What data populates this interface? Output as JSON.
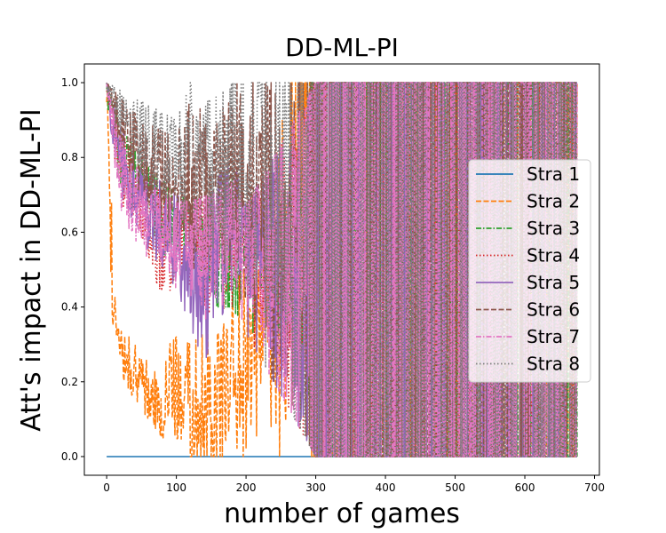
{
  "chart_data": {
    "type": "line",
    "title": "DD-ML-PI",
    "xlabel": "number of games",
    "ylabel": "Att's impact in DD-ML-PI",
    "xlim": [
      -32,
      707
    ],
    "ylim": [
      -0.05,
      1.05
    ],
    "xticks": [
      0,
      100,
      200,
      300,
      400,
      500,
      600,
      700
    ],
    "yticks": [
      0.0,
      0.2,
      0.4,
      0.6,
      0.8,
      1.0
    ],
    "xtick_labels": [
      "0",
      "100",
      "200",
      "300",
      "400",
      "500",
      "600",
      "700"
    ],
    "ytick_labels": [
      "0.0",
      "0.2",
      "0.4",
      "0.6",
      "0.8",
      "1.0"
    ],
    "grid": false,
    "legend_position": "center-right",
    "x_range": [
      0,
      675
    ],
    "series": [
      {
        "name": "Stra 1",
        "color": "#1f77b4",
        "dash": "solid",
        "x": [
          0,
          675
        ],
        "values": [
          0.0,
          0.0
        ]
      },
      {
        "name": "Stra 2",
        "color": "#ff7f0e",
        "dash": "dashed",
        "x": [
          0,
          5,
          10,
          20,
          40,
          60,
          80,
          100,
          120,
          140,
          160,
          175,
          190,
          220,
          260,
          290,
          300,
          400,
          500,
          600,
          675
        ],
        "values": [
          0.97,
          0.7,
          0.38,
          0.28,
          0.22,
          0.16,
          0.14,
          0.18,
          0.12,
          0.1,
          0.14,
          0.2,
          0.25,
          0.3,
          0.5,
          1.0,
          0.5,
          0.5,
          0.5,
          0.5,
          0.5
        ],
        "upper": [
          1.0,
          0.9,
          0.5,
          0.35,
          0.3,
          0.25,
          0.28,
          0.32,
          0.3,
          0.33,
          0.33,
          0.4,
          0.5,
          0.5,
          1.0,
          1.0,
          1.0,
          1.0,
          1.0,
          1.0,
          1.0
        ],
        "lower": [
          0.9,
          0.5,
          0.3,
          0.22,
          0.15,
          0.1,
          0.05,
          0.05,
          0.0,
          0.0,
          0.0,
          0.0,
          0.0,
          0.0,
          0.0,
          0.0,
          0.0,
          0.0,
          0.0,
          0.0,
          0.0
        ]
      },
      {
        "name": "Stra 3",
        "color": "#2ca02c",
        "dash": "dashdot",
        "x": [
          0,
          20,
          50,
          100,
          150,
          180,
          200,
          250,
          280,
          300,
          400,
          500,
          600,
          675
        ],
        "values": [
          1.0,
          0.8,
          0.72,
          0.6,
          0.55,
          0.5,
          0.6,
          0.5,
          0.5,
          0.5,
          0.5,
          0.5,
          0.5,
          0.5
        ],
        "upper": [
          1.0,
          0.88,
          0.8,
          0.7,
          0.68,
          0.75,
          0.67,
          0.67,
          1.0,
          1.0,
          1.0,
          1.0,
          1.0,
          1.0
        ],
        "lower": [
          0.95,
          0.7,
          0.62,
          0.5,
          0.4,
          0.4,
          0.33,
          0.33,
          0.3,
          0.0,
          0.0,
          0.0,
          0.0,
          0.0
        ]
      },
      {
        "name": "Stra 4",
        "color": "#d62728",
        "dash": "dotted",
        "x": [
          0,
          20,
          50,
          85,
          100,
          150,
          180,
          200,
          300,
          400,
          500,
          600,
          675
        ],
        "values": [
          1.0,
          0.78,
          0.7,
          0.55,
          0.6,
          0.55,
          0.55,
          0.6,
          0.5,
          0.5,
          0.5,
          0.5,
          0.5
        ],
        "upper": [
          1.0,
          0.86,
          0.8,
          0.68,
          0.7,
          0.68,
          0.75,
          0.67,
          1.0,
          1.0,
          1.0,
          1.0,
          1.0
        ],
        "lower": [
          0.95,
          0.68,
          0.6,
          0.32,
          0.5,
          0.38,
          0.4,
          0.33,
          0.0,
          0.0,
          0.0,
          0.0,
          0.0
        ]
      },
      {
        "name": "Stra 5",
        "color": "#9467bd",
        "dash": "solid",
        "x": [
          0,
          20,
          50,
          100,
          140,
          160,
          180,
          200,
          300,
          400,
          500,
          600,
          675
        ],
        "values": [
          1.0,
          0.8,
          0.68,
          0.58,
          0.5,
          0.6,
          0.65,
          0.6,
          0.5,
          0.5,
          0.5,
          0.5,
          0.5
        ],
        "upper": [
          1.0,
          0.88,
          0.78,
          0.7,
          0.65,
          0.75,
          0.8,
          0.67,
          1.0,
          1.0,
          1.0,
          1.0,
          1.0
        ],
        "lower": [
          0.95,
          0.7,
          0.58,
          0.45,
          0.25,
          0.35,
          0.45,
          0.33,
          0.0,
          0.0,
          0.0,
          0.0,
          0.0
        ]
      },
      {
        "name": "Stra 6",
        "color": "#8c564b",
        "dash": "dashed",
        "x": [
          0,
          20,
          50,
          100,
          120,
          150,
          180,
          200,
          300,
          400,
          500,
          600,
          675
        ],
        "values": [
          1.0,
          0.9,
          0.8,
          0.7,
          0.75,
          0.65,
          0.75,
          0.7,
          0.5,
          0.5,
          0.5,
          0.5,
          0.5
        ],
        "upper": [
          1.0,
          0.96,
          0.9,
          0.85,
          1.0,
          0.85,
          1.0,
          1.0,
          1.0,
          1.0,
          1.0,
          1.0,
          1.0
        ],
        "lower": [
          0.95,
          0.8,
          0.7,
          0.6,
          0.5,
          0.5,
          0.5,
          0.33,
          0.0,
          0.0,
          0.0,
          0.0,
          0.0
        ]
      },
      {
        "name": "Stra 7",
        "color": "#e377c2",
        "dash": "dashdot",
        "x": [
          0,
          20,
          50,
          100,
          150,
          180,
          200,
          300,
          400,
          500,
          600,
          675
        ],
        "values": [
          1.0,
          0.75,
          0.65,
          0.58,
          0.55,
          0.6,
          0.55,
          0.5,
          0.5,
          0.5,
          0.5,
          0.5
        ],
        "upper": [
          1.0,
          0.85,
          0.75,
          0.68,
          0.7,
          0.75,
          0.67,
          1.0,
          1.0,
          1.0,
          1.0,
          1.0
        ],
        "lower": [
          0.95,
          0.65,
          0.55,
          0.45,
          0.35,
          0.45,
          0.33,
          0.0,
          0.0,
          0.0,
          0.0,
          0.0
        ]
      },
      {
        "name": "Stra 8",
        "color": "#7f7f7f",
        "dash": "dotted",
        "x": [
          0,
          20,
          50,
          100,
          120,
          150,
          180,
          200,
          300,
          400,
          500,
          600,
          675
        ],
        "values": [
          1.0,
          0.92,
          0.85,
          0.78,
          0.8,
          0.75,
          0.8,
          0.75,
          0.55,
          0.5,
          0.5,
          0.5,
          0.5
        ],
        "upper": [
          1.0,
          0.98,
          0.95,
          0.9,
          1.0,
          0.95,
          1.0,
          1.0,
          1.0,
          1.0,
          1.0,
          1.0,
          1.0
        ],
        "lower": [
          0.95,
          0.85,
          0.75,
          0.65,
          0.6,
          0.55,
          0.5,
          0.33,
          0.0,
          0.0,
          0.0,
          0.0,
          0.0
        ]
      }
    ]
  }
}
